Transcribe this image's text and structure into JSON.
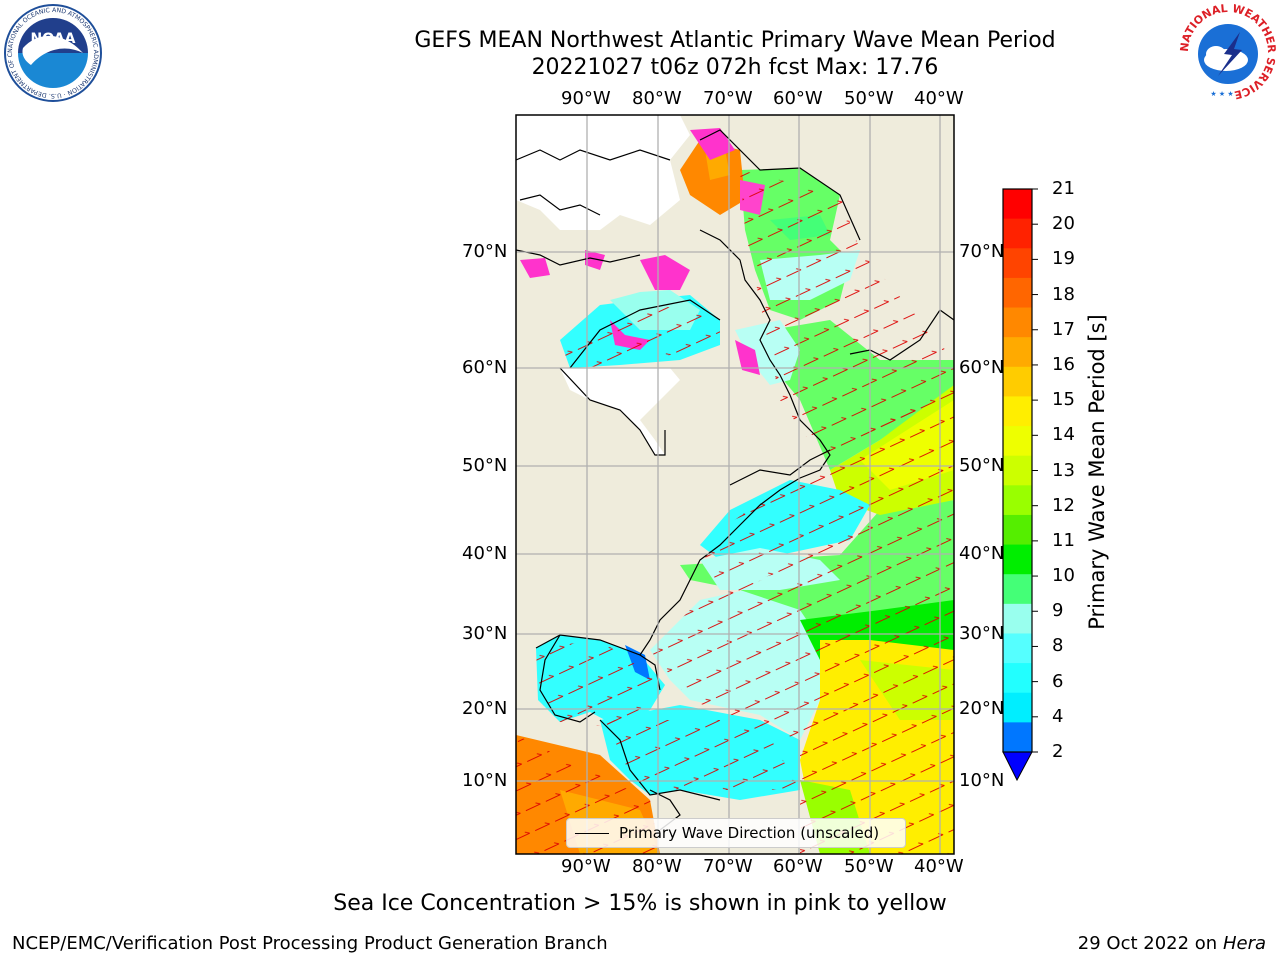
{
  "header": {
    "title_line1": "GEFS MEAN Northwest Atlantic Primary Wave Mean Period",
    "title_line2": "20221027 t06z 072h fcst   Max: 17.76"
  },
  "map": {
    "lon_ticks": [
      "90°W",
      "80°W",
      "70°W",
      "60°W",
      "50°W",
      "40°W"
    ],
    "lat_ticks": [
      "70°N",
      "60°N",
      "50°N",
      "40°N",
      "30°N",
      "20°N",
      "10°N"
    ],
    "legend_label": "Primary Wave Direction (unscaled)"
  },
  "colorbar": {
    "label": "Primary Wave Mean Period [s]",
    "ticks": [
      "21",
      "20",
      "19",
      "18",
      "17",
      "16",
      "15",
      "14",
      "13",
      "12",
      "11",
      "10",
      "9",
      "8",
      "6",
      "4",
      "2"
    ],
    "colors": [
      "#ff0000",
      "#ff2200",
      "#ff4400",
      "#ff6600",
      "#ff8800",
      "#ffaa00",
      "#ffcc00",
      "#ffee00",
      "#eeff00",
      "#ccff00",
      "#99ff00",
      "#55ee00",
      "#00ee00",
      "#44ff77",
      "#99ffee",
      "#55ffff",
      "#22ffff",
      "#00eeff",
      "#0077ff"
    ],
    "extend_color": "#0000ff"
  },
  "notes": {
    "sea_ice": "Sea Ice Concentration > 15% is shown in pink to yellow"
  },
  "footer": {
    "left": "NCEP/EMC/Verification Post Processing Product Generation Branch",
    "right_prefix": "29 Oct 2022 on ",
    "right_machine": "Hera"
  },
  "logos": {
    "noaa_text": "NOAA",
    "noaa_ring": "NATIONAL OCEANIC AND ATMOSPHERIC ADMINISTRATION · U.S. DEPARTMENT OF COMMERCE",
    "nws_ring": "NATIONAL WEATHER SERVICE"
  },
  "colors": {
    "land": "#efecdc",
    "grid": "#b0b0b0",
    "arrows": "#dd0000"
  }
}
